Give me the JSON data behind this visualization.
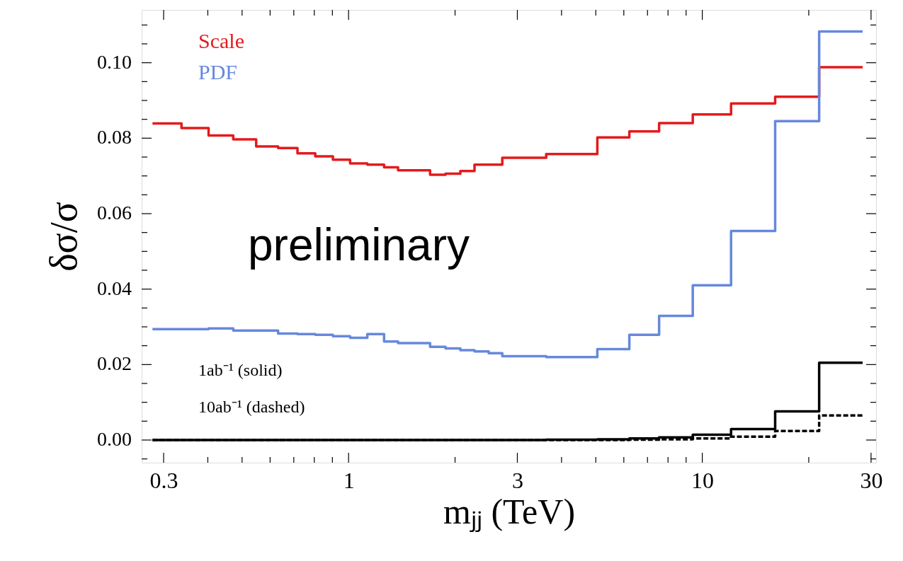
{
  "chart_data": {
    "type": "step",
    "xlabel": "mⱼⱼ (TeV)",
    "ylabel": "δσ/σ",
    "x": [
      0.279,
      0.337,
      0.402,
      0.472,
      0.548,
      0.632,
      0.717,
      0.805,
      0.903,
      1.01,
      1.13,
      1.26,
      1.38,
      1.7,
      1.88,
      2.07,
      2.27,
      2.49,
      2.72,
      3.62,
      5.05,
      6.22,
      7.55,
      9.4,
      12.06,
      16.07,
      21.4,
      28.4
    ],
    "series": [
      {
        "name": "Scale",
        "color": "#e41a1c",
        "values": [
          0.0839,
          0.0827,
          0.0807,
          0.0797,
          0.0778,
          0.0774,
          0.076,
          0.0752,
          0.0743,
          0.0733,
          0.073,
          0.0723,
          0.0715,
          0.0703,
          0.0706,
          0.0713,
          0.073,
          0.073,
          0.0748,
          0.0758,
          0.0802,
          0.0818,
          0.084,
          0.0863,
          0.0892,
          0.091,
          0.0988,
          0.0988
        ]
      },
      {
        "name": "PDF",
        "color": "#6688dd",
        "values": [
          0.0294,
          0.0294,
          0.0296,
          0.029,
          0.029,
          0.0282,
          0.0281,
          0.0279,
          0.0275,
          0.0271,
          0.0281,
          0.0261,
          0.0257,
          0.0247,
          0.0243,
          0.0238,
          0.0235,
          0.023,
          0.0222,
          0.022,
          0.0241,
          0.0279,
          0.0329,
          0.041,
          0.0554,
          0.0845,
          0.1083,
          0.1083
        ]
      },
      {
        "color": "#000000",
        "line_style": "solid",
        "values": [
          0,
          0,
          0,
          0,
          0,
          0,
          0,
          0,
          0,
          0,
          0,
          0,
          0,
          0,
          0,
          0,
          0,
          0,
          0,
          0.0001,
          0.0002,
          0.0004,
          0.0007,
          0.0014,
          0.0029,
          0.0076,
          0.0205,
          0.0205
        ]
      },
      {
        "color": "#000000",
        "line_style": "dashed",
        "values": [
          0,
          0,
          0,
          0,
          0,
          0,
          0,
          0,
          0,
          0,
          0,
          0,
          0,
          0,
          0,
          0,
          0,
          0,
          0,
          0,
          0,
          0.0001,
          0.0002,
          0.0004,
          0.0009,
          0.0024,
          0.0065,
          0.0065
        ]
      }
    ],
    "log": "x",
    "legend": "top left",
    "xlim": [
      0.26,
      31
    ],
    "ylim": [
      -0.006,
      0.114
    ],
    "xticks": [
      0.3,
      {
        "value": 0.4,
        "label": null
      },
      {
        "value": 0.5,
        "label": null
      },
      {
        "value": 0.6,
        "label": null
      },
      {
        "value": 0.7,
        "label": null
      },
      {
        "value": 0.8,
        "label": null
      },
      {
        "value": 0.9,
        "label": null
      },
      1,
      {
        "value": 2,
        "label": null
      },
      3,
      {
        "value": 4,
        "label": null
      },
      {
        "value": 5,
        "label": null
      },
      {
        "value": 6,
        "label": null
      },
      {
        "value": 7,
        "label": null
      },
      {
        "value": 8,
        "label": null
      },
      {
        "value": 9,
        "label": null
      },
      10,
      {
        "value": 20,
        "label": null
      },
      30
    ],
    "yticks": [
      {
        "value": -0.005,
        "label": null
      },
      {
        "value": 0,
        "label": "0.00"
      },
      {
        "value": 0.005,
        "label": null
      },
      {
        "value": 0.01,
        "label": null
      },
      {
        "value": 0.015,
        "label": null
      },
      {
        "value": 0.02,
        "label": "0.02"
      },
      {
        "value": 0.025,
        "label": null
      },
      {
        "value": 0.03,
        "label": null
      },
      {
        "value": 0.035,
        "label": null
      },
      {
        "value": 0.04,
        "label": "0.04"
      },
      {
        "value": 0.045,
        "label": null
      },
      {
        "value": 0.05,
        "label": null
      },
      {
        "value": 0.055,
        "label": null
      },
      {
        "value": 0.06,
        "label": "0.06"
      },
      {
        "value": 0.065,
        "label": null
      },
      {
        "value": 0.07,
        "label": null
      },
      {
        "value": 0.075,
        "label": null
      },
      {
        "value": 0.08,
        "label": "0.08"
      },
      {
        "value": 0.085,
        "label": null
      },
      {
        "value": 0.09,
        "label": null
      },
      {
        "value": 0.095,
        "label": null
      },
      {
        "value": 0.1,
        "label": "0.10"
      },
      {
        "value": 0.105,
        "label": null
      },
      {
        "value": 0.11,
        "label": null
      }
    ],
    "annotations": [
      "preliminary",
      "1ab⁻¹ (solid)",
      "10ab⁻¹ (dashed)"
    ]
  }
}
